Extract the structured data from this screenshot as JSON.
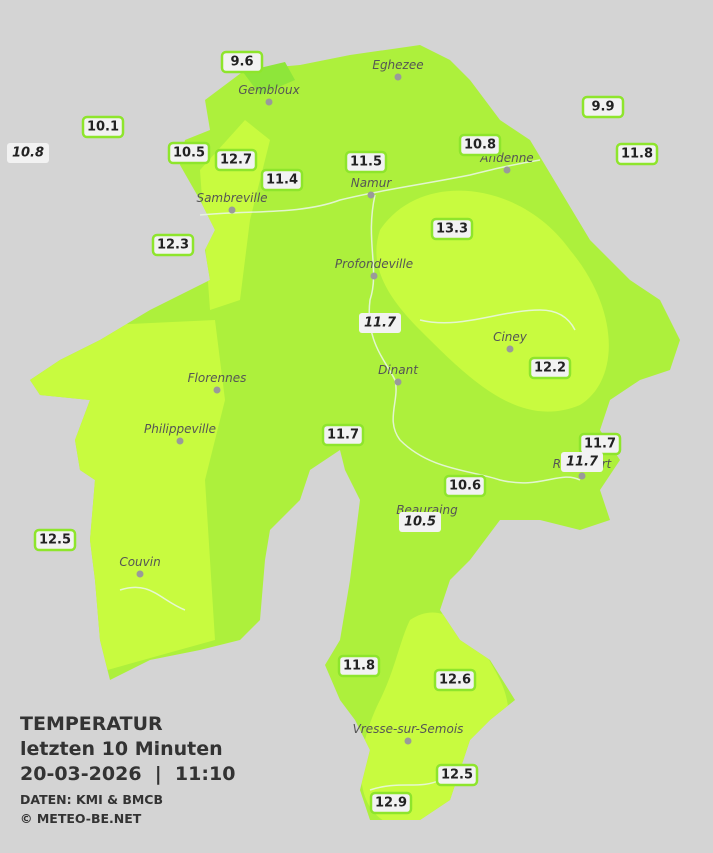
{
  "title": {
    "heading": "TEMPERATUR",
    "period": "letzten 10 Minuten",
    "timestamp": "20-03-2026  |  11:10",
    "source": "DATEN: KMI & BMCB",
    "copyright": "© METEO-BE.NET"
  },
  "cities": [
    "Eghezee",
    "Gembloux",
    "Andenne",
    "Namur",
    "Sambreville",
    "Profondeville",
    "Ciney",
    "Dinant",
    "Florennes",
    "Philippeville",
    "Rochefort",
    "Beauraing",
    "Couvin",
    "Vresse-sur-Semois"
  ],
  "stations": [
    {
      "value": 9.6
    },
    {
      "value": 10.1
    },
    {
      "value": 10.8,
      "italic": true
    },
    {
      "value": 10.5
    },
    {
      "value": 12.7
    },
    {
      "value": 11.4
    },
    {
      "value": 11.5
    },
    {
      "value": 10.8
    },
    {
      "value": 9.9
    },
    {
      "value": 11.8
    },
    {
      "value": 12.3
    },
    {
      "value": 13.3
    },
    {
      "value": 11.7,
      "italic": true
    },
    {
      "value": 12.2
    },
    {
      "value": 11.7
    },
    {
      "value": 11.7
    },
    {
      "value": 11.7,
      "italic": true
    },
    {
      "value": 10.6
    },
    {
      "value": 10.5,
      "italic": true
    },
    {
      "value": 12.5
    },
    {
      "value": 11.8
    },
    {
      "value": 12.6
    },
    {
      "value": 12.5
    },
    {
      "value": 12.9
    }
  ]
}
